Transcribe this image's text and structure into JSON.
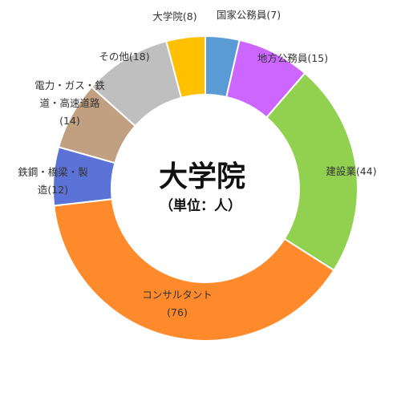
{
  "chart_data": {
    "type": "pie",
    "variant": "donut",
    "title": "大学院",
    "subtitle": "（単位：人）",
    "start": "12 o'clock, clockwise",
    "slices": [
      {
        "value": 7,
        "color": "#5b9bd5",
        "label_lines": [
          "国家公務員(7)"
        ]
      },
      {
        "value": 15,
        "color": "#cc66ff",
        "label_lines": [
          "地方公務員(15)"
        ]
      },
      {
        "value": 44,
        "color": "#92d050",
        "label_lines": [
          "建設業(44)"
        ]
      },
      {
        "value": 76,
        "color": "#ff8a2b",
        "label_lines": [
          "コンサルタント",
          "(76)"
        ]
      },
      {
        "value": 12,
        "color": "#5b73d6",
        "label_lines": [
          "鉄鋼・橋梁・製",
          "造(12)"
        ]
      },
      {
        "value": 14,
        "color": "#c0a080",
        "label_lines": [
          "電力・ガス・鉄",
          "道・高速道路",
          "(14)"
        ]
      },
      {
        "value": 18,
        "color": "#bfbfbf",
        "label_lines": [
          "その他(18)"
        ]
      },
      {
        "value": 8,
        "color": "#ffc000",
        "label_lines": [
          "大学院(8)"
        ]
      }
    ]
  }
}
